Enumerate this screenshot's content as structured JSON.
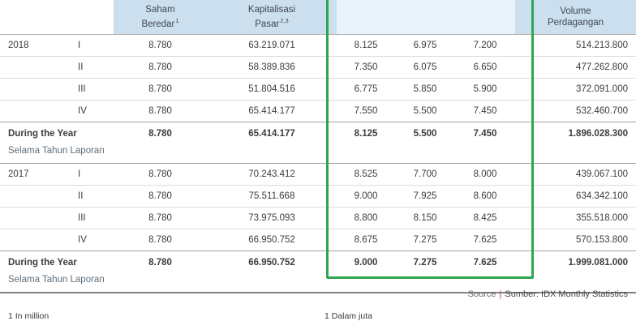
{
  "header": {
    "saham": {
      "line1": "Saham",
      "line2": "Beredar",
      "sup": "1"
    },
    "kap": {
      "line1": "Kapitalisasi",
      "line2": "Pasar",
      "sup": "2,3"
    },
    "volume": {
      "line1": "Volume",
      "line2": "Perdagangan"
    }
  },
  "years": {
    "y2018": {
      "label": "2018",
      "quarters": [
        {
          "q": "I",
          "saham": "8.780",
          "kap": "63.219.071",
          "p1": "8.125",
          "p2": "6.975",
          "p3": "7.200",
          "vol": "514.213.800"
        },
        {
          "q": "II",
          "saham": "8.780",
          "kap": "58.389.836",
          "p1": "7.350",
          "p2": "6.075",
          "p3": "6.650",
          "vol": "477.262.800"
        },
        {
          "q": "III",
          "saham": "8.780",
          "kap": "51.804.516",
          "p1": "6.775",
          "p2": "5.850",
          "p3": "5.900",
          "vol": "372.091.000"
        },
        {
          "q": "IV",
          "saham": "8.780",
          "kap": "65.414.177",
          "p1": "7.550",
          "p2": "5.500",
          "p3": "7.450",
          "vol": "532.460.700"
        }
      ],
      "summary": {
        "en": "During the Year",
        "id": "Selama Tahun Laporan",
        "saham": "8.780",
        "kap": "65.414.177",
        "p1": "8.125",
        "p2": "5.500",
        "p3": "7.450",
        "vol": "1.896.028.300"
      }
    },
    "y2017": {
      "label": "2017",
      "quarters": [
        {
          "q": "I",
          "saham": "8.780",
          "kap": "70.243.412",
          "p1": "8.525",
          "p2": "7.700",
          "p3": "8.000",
          "vol": "439.067.100"
        },
        {
          "q": "II",
          "saham": "8.780",
          "kap": "75.511.668",
          "p1": "9.000",
          "p2": "7.925",
          "p3": "8.600",
          "vol": "634.342.100"
        },
        {
          "q": "III",
          "saham": "8.780",
          "kap": "73.975.093",
          "p1": "8.800",
          "p2": "8.150",
          "p3": "8.425",
          "vol": "355.518.000"
        },
        {
          "q": "IV",
          "saham": "8.780",
          "kap": "66.950.752",
          "p1": "8.675",
          "p2": "7.275",
          "p3": "7.625",
          "vol": "570.153.800"
        }
      ],
      "summary": {
        "en": "During the Year",
        "id": "Selama Tahun Laporan",
        "saham": "8.780",
        "kap": "66.950.752",
        "p1": "9.000",
        "p2": "7.275",
        "p3": "7.625",
        "vol": "1.999.081.000"
      }
    }
  },
  "source": {
    "en": "Source",
    "divider": "|",
    "id": "Sumber: IDX Monthly Statistics"
  },
  "footnotes": {
    "en": "1 In million",
    "id": "1 Dalam juta"
  },
  "colors": {
    "header_bg": "#ccdfee",
    "highlight_green": "#2ea64e"
  }
}
